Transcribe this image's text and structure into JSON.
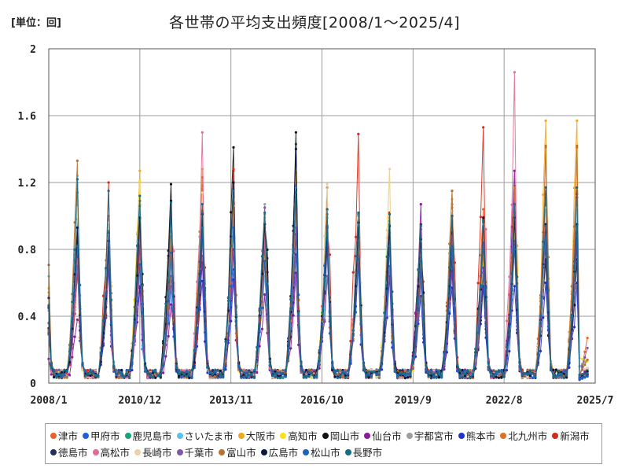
{
  "unit_label": "[単位：回]",
  "chart_data": {
    "type": "line",
    "title": "各世帯の平均支出頻度[2008/1～2025/4]",
    "xlabel": "",
    "ylabel": "",
    "ylim": [
      0,
      2
    ],
    "y_ticks": [
      "0",
      "0.4",
      "0.8",
      "1.2",
      "1.6",
      "2"
    ],
    "x_ticks": [
      "2008/1",
      "2010/12",
      "2013/11",
      "2016/10",
      "2019/9",
      "2022/8",
      "2025/7"
    ],
    "grid": true,
    "legend_position": "bottom",
    "series": [
      {
        "name": "津市",
        "color": "#e8622a",
        "peaks": [
          0.66,
          1.0,
          0.99,
          1.09,
          1.18,
          1.27,
          0.85,
          1.08,
          1.17,
          0.76,
          0.99,
          0.77,
          1.07,
          1.04,
          1.18,
          1.14
        ],
        "tail": [
          0.02,
          0.27
        ]
      },
      {
        "name": "甲府市",
        "color": "#1f5fe0",
        "peaks": [
          0.93,
          0.8,
          0.74,
          0.58,
          0.76,
          0.68,
          0.86,
          1.43,
          0.99,
          0.8,
          1.02,
          0.77,
          0.74,
          0.73,
          1.17,
          0.91
        ],
        "tail": [
          0.02,
          0.04
        ]
      },
      {
        "name": "鹿児島市",
        "color": "#1aa37a",
        "peaks": [
          1.14,
          0.91,
          1.07,
          0.83,
          1.0,
          1.03,
          0.91,
          1.13,
          0.99,
          1.01,
          0.97,
          0.92,
          0.88,
          0.96,
          0.98,
          0.92
        ],
        "tail": [
          0.03,
          0.08
        ]
      },
      {
        "name": "さいたま市",
        "color": "#5bc2ee",
        "peaks": [
          1.24,
          0.9,
          0.75,
          0.64,
          0.91,
          0.92,
          0.64,
          1.07,
          0.77,
          0.88,
          0.87,
          0.63,
          0.72,
          0.84,
          0.9,
          0.88
        ],
        "tail": [
          0.03,
          0.06
        ]
      },
      {
        "name": "大阪市",
        "color": "#f0a820",
        "peaks": [
          1.02,
          0.88,
          1.27,
          0.72,
          1.28,
          0.99,
          0.99,
          1.26,
          1.01,
          0.97,
          0.99,
          0.83,
          1.1,
          0.75,
          0.97,
          1.57
        ],
        "tail": [
          0.04,
          0.05
        ]
      },
      {
        "name": "高知市",
        "color": "#f5e21c",
        "peaks": [
          1.04,
          0.87,
          1.21,
          0.94,
          1.06,
          1.03,
          0.75,
          1.16,
          1.04,
          0.74,
          1.28,
          0.58,
          0.97,
          0.72,
          0.89,
          1.15
        ],
        "tail": [
          0.15,
          0.13
        ]
      },
      {
        "name": "岡山市",
        "color": "#111111",
        "peaks": [
          0.9,
          0.88,
          0.98,
          1.19,
          0.93,
          1.41,
          0.95,
          1.5,
          0.9,
          0.87,
          0.87,
          0.95,
          0.9,
          0.98,
          1.02,
          0.74
        ],
        "tail": [
          0.03,
          0.05
        ]
      },
      {
        "name": "仙台市",
        "color": "#8a1a9e",
        "peaks": [
          0.38,
          0.7,
          0.58,
          0.47,
          0.72,
          0.8,
          0.53,
          0.66,
          0.64,
          0.81,
          0.95,
          1.07,
          0.67,
          0.69,
          1.27,
          1.11
        ],
        "tail": [
          0.03,
          0.09
        ]
      },
      {
        "name": "宇都宮市",
        "color": "#9e9e9e",
        "peaks": [
          1.09,
          0.98,
          0.9,
          0.84,
          1.15,
          1.1,
          1.07,
          1.02,
          0.94,
          1.0,
          0.9,
          0.79,
          1.15,
          0.84,
          0.83,
          1.15
        ],
        "tail": [
          0.1,
          0.14
        ]
      },
      {
        "name": "熊本市",
        "color": "#2233cc",
        "peaks": [
          0.76,
          0.72,
          0.57,
          0.88,
          0.61,
          0.62,
          0.73,
          0.77,
          0.81,
          0.71,
          0.64,
          0.52,
          0.57,
          0.58,
          0.58,
          0.6
        ],
        "tail": [
          0.03,
          0.05
        ]
      },
      {
        "name": "北九州市",
        "color": "#e0701f",
        "peaks": [
          0.73,
          0.74,
          0.92,
          0.71,
          1.23,
          1.04,
          0.82,
          1.05,
          0.94,
          0.93,
          0.93,
          0.71,
          1.05,
          0.78,
          1.17,
          1.41
        ],
        "tail": [
          0.04,
          0.06
        ]
      },
      {
        "name": "新潟市",
        "color": "#d42a1a",
        "peaks": [
          0.65,
          1.2,
          0.82,
          1.01,
          0.86,
          1.28,
          0.93,
          1.17,
          0.92,
          1.49,
          1.02,
          0.71,
          1.03,
          1.53,
          1.06,
          1.13
        ],
        "tail": [
          0.03,
          0.07
        ]
      },
      {
        "name": "徳島市",
        "color": "#23305e",
        "peaks": [
          0.98,
          0.79,
          1.09,
          0.87,
          0.93,
          0.97,
          0.84,
          0.89,
          0.85,
          0.96,
          0.91,
          0.68,
          0.74,
          0.66,
          0.83,
          0.83
        ],
        "tail": [
          0.03,
          0.05
        ]
      },
      {
        "name": "高松市",
        "color": "#e36a9a",
        "peaks": [
          0.74,
          0.98,
          0.67,
          0.89,
          1.5,
          1.06,
          0.87,
          1.1,
          0.94,
          0.85,
          0.85,
          0.74,
          0.88,
          0.95,
          1.86,
          0.95
        ],
        "tail": [
          0.03,
          0.06
        ]
      },
      {
        "name": "長崎市",
        "color": "#e8d3a9",
        "peaks": [
          1.05,
          0.96,
          1.17,
          0.89,
          1.14,
          1.06,
          0.97,
          1.17,
          1.19,
          0.95,
          1.28,
          0.85,
          1.03,
          0.95,
          0.94,
          1.05
        ],
        "tail": [
          0.07,
          0.09
        ]
      },
      {
        "name": "千葉市",
        "color": "#7d5aa3",
        "peaks": [
          0.7,
          0.81,
          0.95,
          0.64,
          1.02,
          1.16,
          1.05,
          0.93,
          0.64,
          0.84,
          0.7,
          0.6,
          0.8,
          0.66,
          0.85,
          0.9
        ],
        "tail": [
          0.04,
          0.21
        ]
      },
      {
        "name": "富山市",
        "color": "#b87333",
        "peaks": [
          1.33,
          0.91,
          1.06,
          0.91,
          1.03,
          1.09,
          1.01,
          1.11,
          1.01,
          0.93,
          0.9,
          0.75,
          1.15,
          0.98,
          1.06,
          1.42
        ],
        "tail": [
          0.05,
          0.14
        ]
      },
      {
        "name": "広島市",
        "color": "#0b1740",
        "peaks": [
          0.93,
          0.85,
          0.99,
          1.09,
          1.01,
          1.2,
          0.95,
          1.4,
          0.93,
          0.96,
          0.94,
          0.86,
          1.0,
          0.99,
          0.99,
          0.95
        ],
        "tail": [
          0.03,
          0.07
        ]
      },
      {
        "name": "松山市",
        "color": "#1d63b8",
        "peaks": [
          0.82,
          0.9,
          0.71,
          0.78,
          0.93,
          0.93,
          0.73,
          1.18,
          0.94,
          0.74,
          0.82,
          0.73,
          0.82,
          0.84,
          0.8,
          0.94
        ],
        "tail": [
          0.03,
          0.04
        ]
      },
      {
        "name": "長野市",
        "color": "#156d84",
        "peaks": [
          1.22,
          1.15,
          1.12,
          1.08,
          1.07,
          1.15,
          1.02,
          1.14,
          1.04,
          1.02,
          1.01,
          0.94,
          1.0,
          0.97,
          1.07,
          1.17
        ],
        "tail": [
          0.05,
          0.06
        ]
      }
    ]
  }
}
